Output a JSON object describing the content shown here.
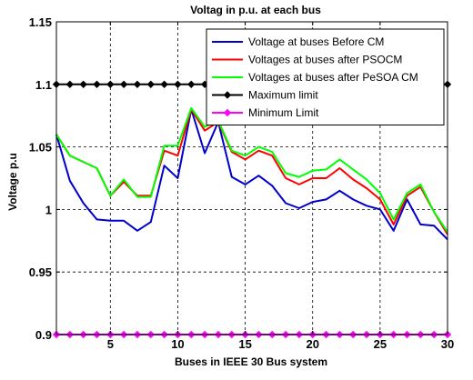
{
  "chart_data": {
    "type": "line",
    "title": "Voltag in p.u. at each bus",
    "xlabel": "Buses in IEEE 30 Bus system",
    "ylabel": "Voltage p.u",
    "xlim": [
      1,
      30
    ],
    "ylim": [
      0.9,
      1.15
    ],
    "xticks": [
      5,
      10,
      15,
      20,
      25,
      30
    ],
    "yticks": [
      0.9,
      0.95,
      1,
      1.05,
      1.1,
      1.15
    ],
    "ytick_labels": [
      "0.9",
      "0.95",
      "1",
      "1.05",
      "1.1",
      "1.15"
    ],
    "grid": true,
    "legend_position": "top-right",
    "x": [
      1,
      2,
      3,
      4,
      5,
      6,
      7,
      8,
      9,
      10,
      11,
      12,
      13,
      14,
      15,
      16,
      17,
      18,
      19,
      20,
      21,
      22,
      23,
      24,
      25,
      26,
      27,
      28,
      29,
      30
    ],
    "series": [
      {
        "name": "Voltage at buses Before CM",
        "color": "#0000cc",
        "marker": "none",
        "values": [
          1.06,
          1.023,
          1.005,
          0.992,
          0.991,
          0.991,
          0.983,
          0.99,
          1.035,
          1.025,
          1.08,
          1.045,
          1.07,
          1.026,
          1.02,
          1.027,
          1.019,
          1.005,
          1.001,
          1.006,
          1.008,
          1.015,
          1.008,
          1.003,
          1.0,
          0.983,
          1.008,
          0.988,
          0.987,
          0.976
        ]
      },
      {
        "name": "Voltages at buses after PSOCM",
        "color": "#ff0000",
        "marker": "none",
        "values": [
          1.06,
          1.043,
          1.038,
          1.033,
          1.011,
          1.022,
          1.011,
          1.011,
          1.047,
          1.043,
          1.08,
          1.063,
          1.07,
          1.046,
          1.04,
          1.047,
          1.043,
          1.025,
          1.02,
          1.025,
          1.025,
          1.033,
          1.024,
          1.017,
          1.008,
          0.988,
          1.011,
          1.018,
          0.998,
          0.98
        ]
      },
      {
        "name": "Voltages at buses after PeSOA CM",
        "color": "#00ff00",
        "marker": "none",
        "values": [
          1.06,
          1.043,
          1.038,
          1.033,
          1.011,
          1.024,
          1.01,
          1.01,
          1.051,
          1.051,
          1.081,
          1.066,
          1.071,
          1.047,
          1.043,
          1.05,
          1.046,
          1.029,
          1.026,
          1.031,
          1.032,
          1.04,
          1.032,
          1.024,
          1.013,
          0.992,
          1.013,
          1.02,
          0.998,
          0.982
        ]
      },
      {
        "name": "Maximum limit",
        "color": "#000000",
        "marker": "diamond",
        "values": [
          1.1,
          1.1,
          1.1,
          1.1,
          1.1,
          1.1,
          1.1,
          1.1,
          1.1,
          1.1,
          1.1,
          1.1,
          1.1,
          1.1,
          1.1,
          1.1,
          1.1,
          1.1,
          1.1,
          1.1,
          1.1,
          1.1,
          1.1,
          1.1,
          1.1,
          1.1,
          1.1,
          1.1,
          1.1,
          1.1
        ]
      },
      {
        "name": "Minimum Limit",
        "color": "#ff00ff",
        "marker": "diamond",
        "values": [
          0.9,
          0.9,
          0.9,
          0.9,
          0.9,
          0.9,
          0.9,
          0.9,
          0.9,
          0.9,
          0.9,
          0.9,
          0.9,
          0.9,
          0.9,
          0.9,
          0.9,
          0.9,
          0.9,
          0.9,
          0.9,
          0.9,
          0.9,
          0.9,
          0.9,
          0.9,
          0.9,
          0.9,
          0.9,
          0.9
        ]
      }
    ]
  }
}
